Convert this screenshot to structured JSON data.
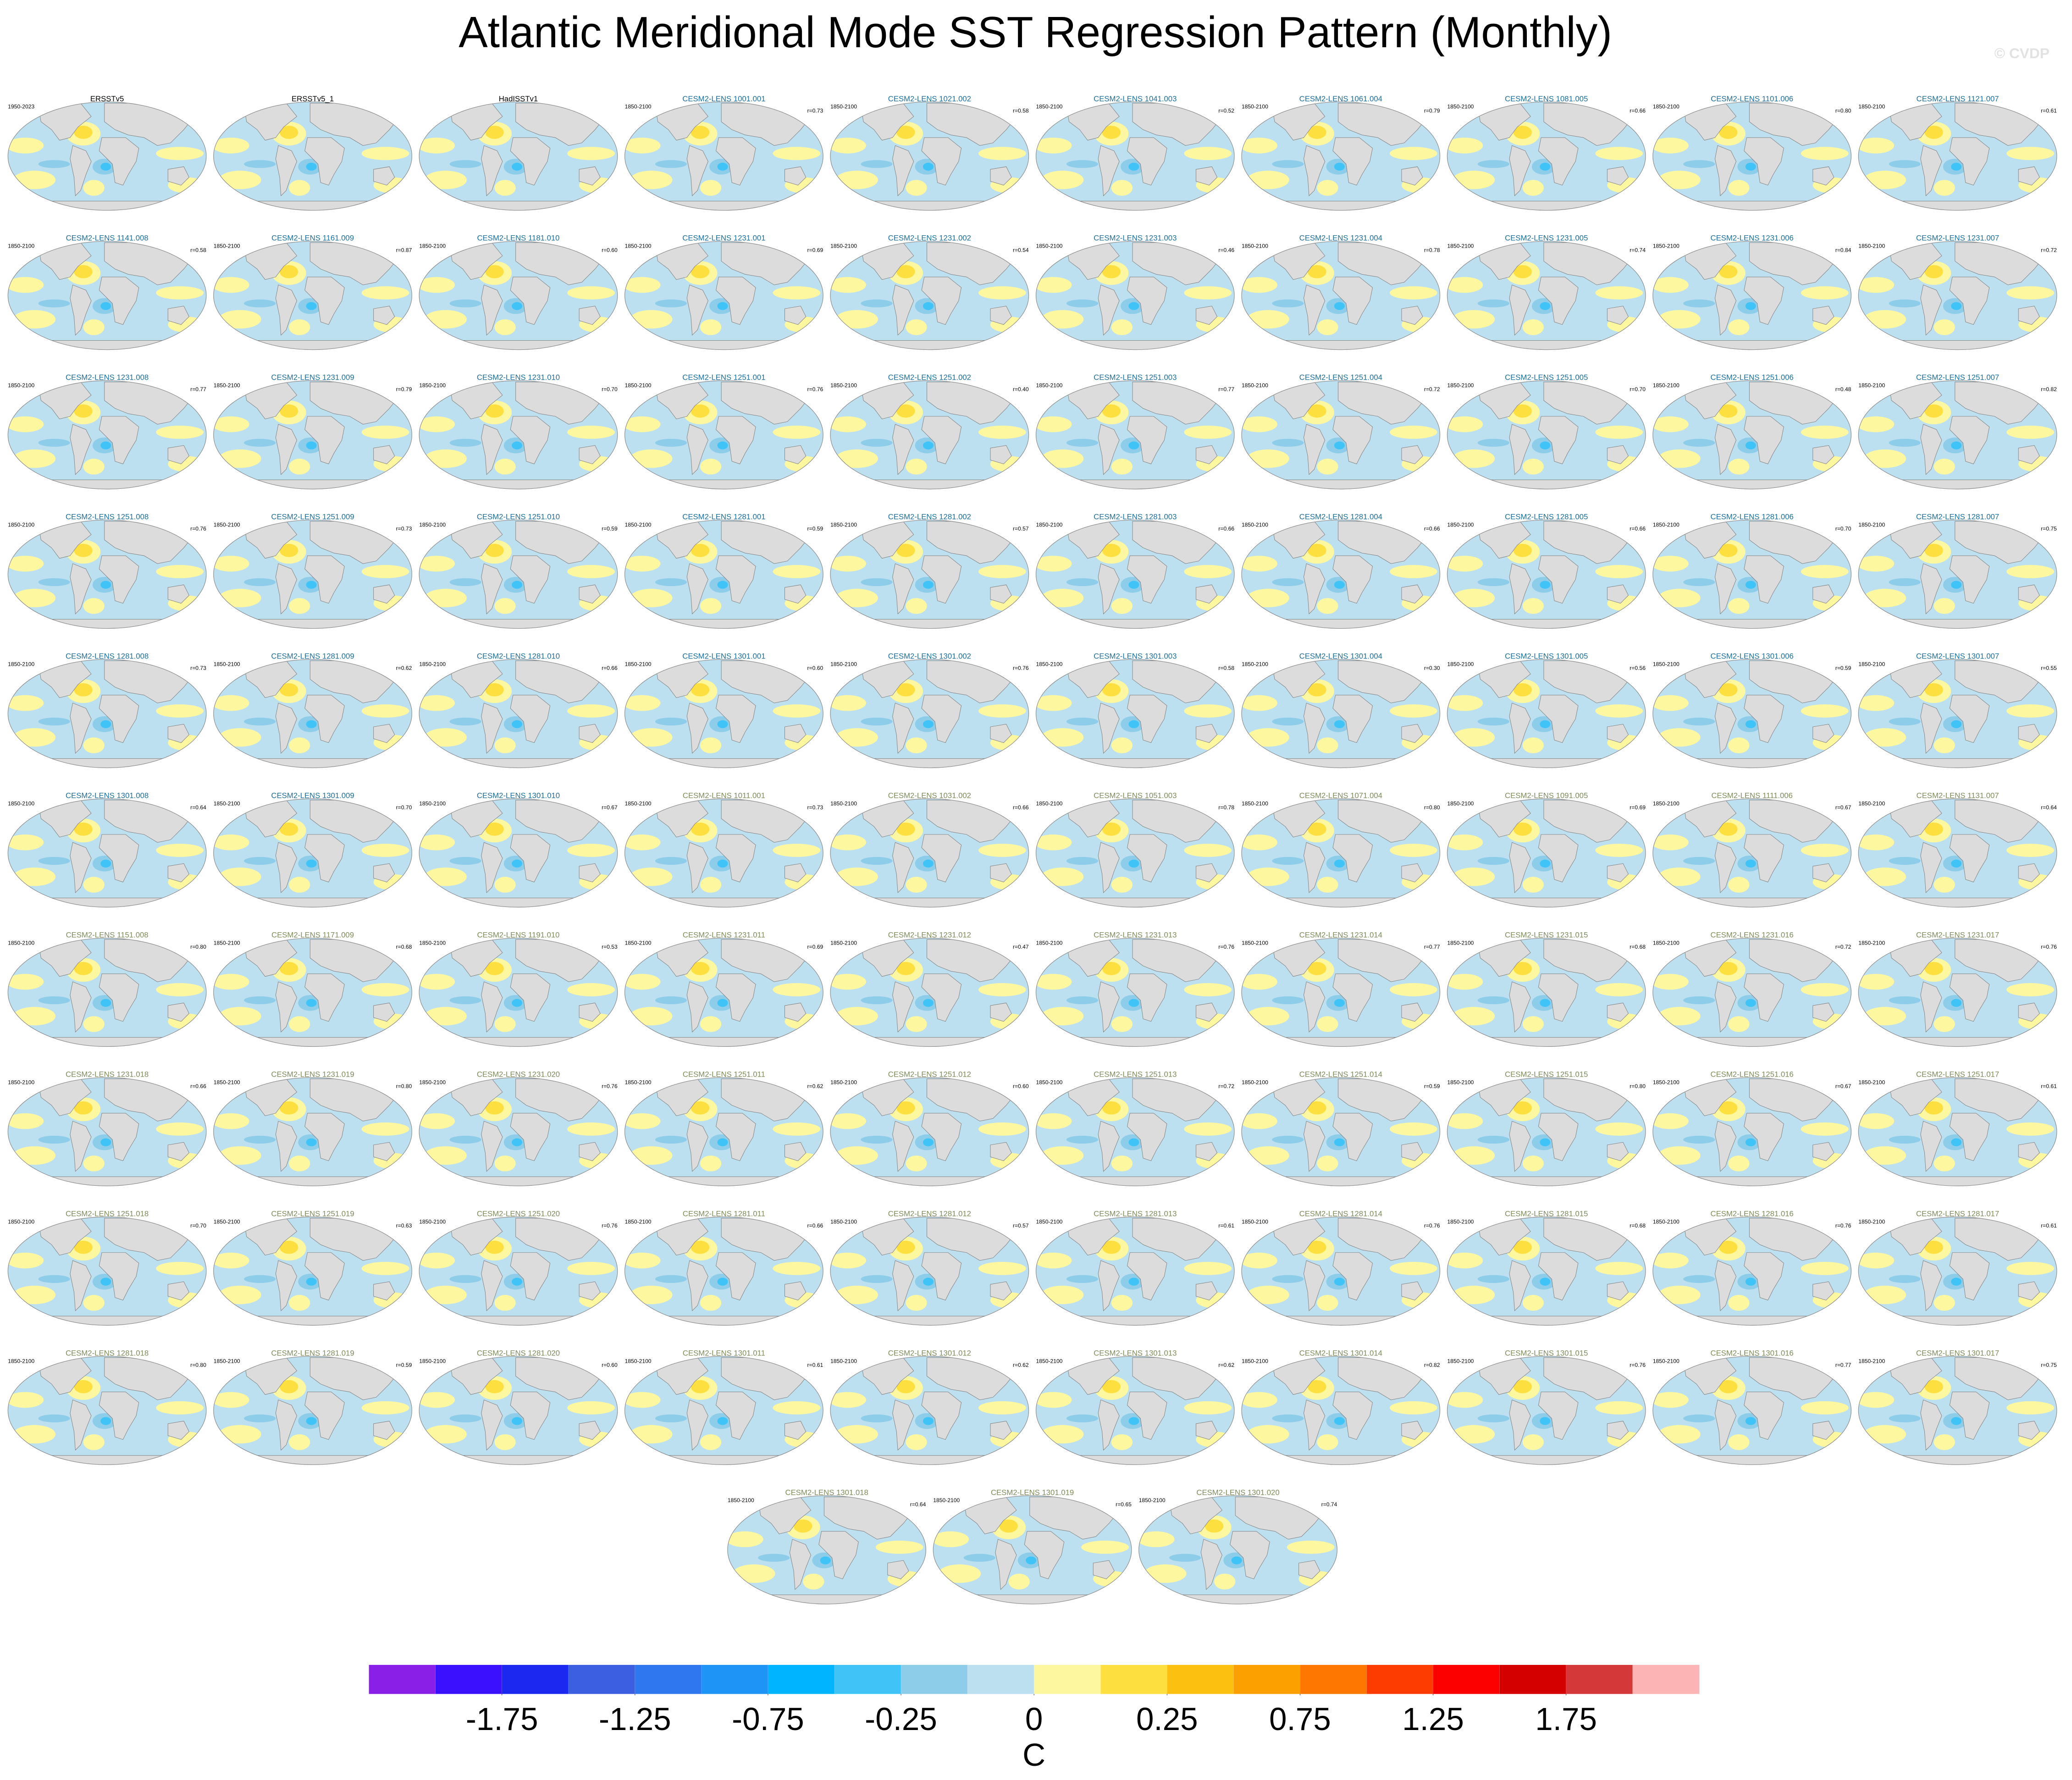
{
  "title": "Atlantic Meridional Mode SST Regression Pattern (Monthly)",
  "watermark": "© CVDP",
  "panels": [
    {
      "title": "ERSSTv5",
      "period": "1950-2023",
      "color": "#000000"
    },
    {
      "title": "ERSSTv5_1",
      "color": "#000000"
    },
    {
      "title": "HadISSTv1",
      "color": "#000000"
    },
    {
      "title": "CESM2-LENS 1001.001",
      "period": "1850-2100",
      "r": "r=0.73",
      "color": "#1b6f9e"
    },
    {
      "title": "CESM2-LENS 1021.002",
      "period": "1850-2100",
      "r": "r=0.58",
      "color": "#1b6f9e"
    },
    {
      "title": "CESM2-LENS 1041.003",
      "period": "1850-2100",
      "r": "r=0.52",
      "color": "#1b6f9e"
    },
    {
      "title": "CESM2-LENS 1061.004",
      "period": "1850-2100",
      "r": "r=0.79",
      "color": "#1b6f9e"
    },
    {
      "title": "CESM2-LENS 1081.005",
      "period": "1850-2100",
      "r": "r=0.66",
      "color": "#1b6f9e"
    },
    {
      "title": "CESM2-LENS 1101.006",
      "period": "1850-2100",
      "r": "r=0.80",
      "color": "#1b6f9e"
    },
    {
      "title": "CESM2-LENS 1121.007",
      "period": "1850-2100",
      "r": "r=0.61",
      "color": "#1b6f9e"
    },
    {
      "title": "CESM2-LENS 1141.008",
      "period": "1850-2100",
      "r": "r=0.58",
      "color": "#1b6f9e"
    },
    {
      "title": "CESM2-LENS 1161.009",
      "period": "1850-2100",
      "r": "r=0.87",
      "color": "#1b6f9e"
    },
    {
      "title": "CESM2-LENS 1181.010",
      "period": "1850-2100",
      "r": "r=0.60",
      "color": "#1b6f9e"
    },
    {
      "title": "CESM2-LENS 1231.001",
      "period": "1850-2100",
      "r": "r=0.69",
      "color": "#1b6f9e"
    },
    {
      "title": "CESM2-LENS 1231.002",
      "period": "1850-2100",
      "r": "r=0.54",
      "color": "#1b6f9e"
    },
    {
      "title": "CESM2-LENS 1231.003",
      "period": "1850-2100",
      "r": "r=0.46",
      "color": "#1b6f9e"
    },
    {
      "title": "CESM2-LENS 1231.004",
      "period": "1850-2100",
      "r": "r=0.78",
      "color": "#1b6f9e"
    },
    {
      "title": "CESM2-LENS 1231.005",
      "period": "1850-2100",
      "r": "r=0.74",
      "color": "#1b6f9e"
    },
    {
      "title": "CESM2-LENS 1231.006",
      "period": "1850-2100",
      "r": "r=0.84",
      "color": "#1b6f9e"
    },
    {
      "title": "CESM2-LENS 1231.007",
      "period": "1850-2100",
      "r": "r=0.72",
      "color": "#1b6f9e"
    },
    {
      "title": "CESM2-LENS 1231.008",
      "period": "1850-2100",
      "r": "r=0.77",
      "color": "#1b6f9e"
    },
    {
      "title": "CESM2-LENS 1231.009",
      "period": "1850-2100",
      "r": "r=0.79",
      "color": "#1b6f9e"
    },
    {
      "title": "CESM2-LENS 1231.010",
      "period": "1850-2100",
      "r": "r=0.70",
      "color": "#1b6f9e"
    },
    {
      "title": "CESM2-LENS 1251.001",
      "period": "1850-2100",
      "r": "r=0.76",
      "color": "#1b6f9e"
    },
    {
      "title": "CESM2-LENS 1251.002",
      "period": "1850-2100",
      "r": "r=0.40",
      "color": "#1b6f9e"
    },
    {
      "title": "CESM2-LENS 1251.003",
      "period": "1850-2100",
      "r": "r=0.77",
      "color": "#1b6f9e"
    },
    {
      "title": "CESM2-LENS 1251.004",
      "period": "1850-2100",
      "r": "r=0.72",
      "color": "#1b6f9e"
    },
    {
      "title": "CESM2-LENS 1251.005",
      "period": "1850-2100",
      "r": "r=0.70",
      "color": "#1b6f9e"
    },
    {
      "title": "CESM2-LENS 1251.006",
      "period": "1850-2100",
      "r": "r=0.48",
      "color": "#1b6f9e"
    },
    {
      "title": "CESM2-LENS 1251.007",
      "period": "1850-2100",
      "r": "r=0.82",
      "color": "#1b6f9e"
    },
    {
      "title": "CESM2-LENS 1251.008",
      "period": "1850-2100",
      "r": "r=0.76",
      "color": "#1b6f9e"
    },
    {
      "title": "CESM2-LENS 1251.009",
      "period": "1850-2100",
      "r": "r=0.73",
      "color": "#1b6f9e"
    },
    {
      "title": "CESM2-LENS 1251.010",
      "period": "1850-2100",
      "r": "r=0.59",
      "color": "#1b6f9e"
    },
    {
      "title": "CESM2-LENS 1281.001",
      "period": "1850-2100",
      "r": "r=0.59",
      "color": "#1b6f9e"
    },
    {
      "title": "CESM2-LENS 1281.002",
      "period": "1850-2100",
      "r": "r=0.57",
      "color": "#1b6f9e"
    },
    {
      "title": "CESM2-LENS 1281.003",
      "period": "1850-2100",
      "r": "r=0.66",
      "color": "#1b6f9e"
    },
    {
      "title": "CESM2-LENS 1281.004",
      "period": "1850-2100",
      "r": "r=0.66",
      "color": "#1b6f9e"
    },
    {
      "title": "CESM2-LENS 1281.005",
      "period": "1850-2100",
      "r": "r=0.66",
      "color": "#1b6f9e"
    },
    {
      "title": "CESM2-LENS 1281.006",
      "period": "1850-2100",
      "r": "r=0.70",
      "color": "#1b6f9e"
    },
    {
      "title": "CESM2-LENS 1281.007",
      "period": "1850-2100",
      "r": "r=0.75",
      "color": "#1b6f9e"
    },
    {
      "title": "CESM2-LENS 1281.008",
      "period": "1850-2100",
      "r": "r=0.73",
      "color": "#1b6f9e"
    },
    {
      "title": "CESM2-LENS 1281.009",
      "period": "1850-2100",
      "r": "r=0.62",
      "color": "#1b6f9e"
    },
    {
      "title": "CESM2-LENS 1281.010",
      "period": "1850-2100",
      "r": "r=0.66",
      "color": "#1b6f9e"
    },
    {
      "title": "CESM2-LENS 1301.001",
      "period": "1850-2100",
      "r": "r=0.60",
      "color": "#1b6f9e"
    },
    {
      "title": "CESM2-LENS 1301.002",
      "period": "1850-2100",
      "r": "r=0.76",
      "color": "#1b6f9e"
    },
    {
      "title": "CESM2-LENS 1301.003",
      "period": "1850-2100",
      "r": "r=0.58",
      "color": "#1b6f9e"
    },
    {
      "title": "CESM2-LENS 1301.004",
      "period": "1850-2100",
      "r": "r=0.30",
      "color": "#1b6f9e"
    },
    {
      "title": "CESM2-LENS 1301.005",
      "period": "1850-2100",
      "r": "r=0.56",
      "color": "#1b6f9e"
    },
    {
      "title": "CESM2-LENS 1301.006",
      "period": "1850-2100",
      "r": "r=0.59",
      "color": "#1b6f9e"
    },
    {
      "title": "CESM2-LENS 1301.007",
      "period": "1850-2100",
      "r": "r=0.55",
      "color": "#1b6f9e"
    },
    {
      "title": "CESM2-LENS 1301.008",
      "period": "1850-2100",
      "r": "r=0.64",
      "color": "#1b6f9e"
    },
    {
      "title": "CESM2-LENS 1301.009",
      "period": "1850-2100",
      "r": "r=0.70",
      "color": "#1b6f9e"
    },
    {
      "title": "CESM2-LENS 1301.010",
      "period": "1850-2100",
      "r": "r=0.67",
      "color": "#1b6f9e"
    },
    {
      "title": "CESM2-LENS 1011.001",
      "period": "1850-2100",
      "r": "r=0.73",
      "color": "#7d8c5a"
    },
    {
      "title": "CESM2-LENS 1031.002",
      "period": "1850-2100",
      "r": "r=0.66",
      "color": "#7d8c5a"
    },
    {
      "title": "CESM2-LENS 1051.003",
      "period": "1850-2100",
      "r": "r=0.78",
      "color": "#7d8c5a"
    },
    {
      "title": "CESM2-LENS 1071.004",
      "period": "1850-2100",
      "r": "r=0.80",
      "color": "#7d8c5a"
    },
    {
      "title": "CESM2-LENS 1091.005",
      "period": "1850-2100",
      "r": "r=0.69",
      "color": "#7d8c5a"
    },
    {
      "title": "CESM2-LENS 1111.006",
      "period": "1850-2100",
      "r": "r=0.67",
      "color": "#7d8c5a"
    },
    {
      "title": "CESM2-LENS 1131.007",
      "period": "1850-2100",
      "r": "r=0.64",
      "color": "#7d8c5a"
    },
    {
      "title": "CESM2-LENS 1151.008",
      "period": "1850-2100",
      "r": "r=0.80",
      "color": "#7d8c5a"
    },
    {
      "title": "CESM2-LENS 1171.009",
      "period": "1850-2100",
      "r": "r=0.68",
      "color": "#7d8c5a"
    },
    {
      "title": "CESM2-LENS 1191.010",
      "period": "1850-2100",
      "r": "r=0.53",
      "color": "#7d8c5a"
    },
    {
      "title": "CESM2-LENS 1231.011",
      "period": "1850-2100",
      "r": "r=0.69",
      "color": "#7d8c5a"
    },
    {
      "title": "CESM2-LENS 1231.012",
      "period": "1850-2100",
      "r": "r=0.47",
      "color": "#7d8c5a"
    },
    {
      "title": "CESM2-LENS 1231.013",
      "period": "1850-2100",
      "r": "r=0.76",
      "color": "#7d8c5a"
    },
    {
      "title": "CESM2-LENS 1231.014",
      "period": "1850-2100",
      "r": "r=0.77",
      "color": "#7d8c5a"
    },
    {
      "title": "CESM2-LENS 1231.015",
      "period": "1850-2100",
      "r": "r=0.68",
      "color": "#7d8c5a"
    },
    {
      "title": "CESM2-LENS 1231.016",
      "period": "1850-2100",
      "r": "r=0.72",
      "color": "#7d8c5a"
    },
    {
      "title": "CESM2-LENS 1231.017",
      "period": "1850-2100",
      "r": "r=0.76",
      "color": "#7d8c5a"
    },
    {
      "title": "CESM2-LENS 1231.018",
      "period": "1850-2100",
      "r": "r=0.66",
      "color": "#7d8c5a"
    },
    {
      "title": "CESM2-LENS 1231.019",
      "period": "1850-2100",
      "r": "r=0.80",
      "color": "#7d8c5a"
    },
    {
      "title": "CESM2-LENS 1231.020",
      "period": "1850-2100",
      "r": "r=0.76",
      "color": "#7d8c5a"
    },
    {
      "title": "CESM2-LENS 1251.011",
      "period": "1850-2100",
      "r": "r=0.62",
      "color": "#7d8c5a"
    },
    {
      "title": "CESM2-LENS 1251.012",
      "period": "1850-2100",
      "r": "r=0.60",
      "color": "#7d8c5a"
    },
    {
      "title": "CESM2-LENS 1251.013",
      "period": "1850-2100",
      "r": "r=0.72",
      "color": "#7d8c5a"
    },
    {
      "title": "CESM2-LENS 1251.014",
      "period": "1850-2100",
      "r": "r=0.59",
      "color": "#7d8c5a"
    },
    {
      "title": "CESM2-LENS 1251.015",
      "period": "1850-2100",
      "r": "r=0.80",
      "color": "#7d8c5a"
    },
    {
      "title": "CESM2-LENS 1251.016",
      "period": "1850-2100",
      "r": "r=0.67",
      "color": "#7d8c5a"
    },
    {
      "title": "CESM2-LENS 1251.017",
      "period": "1850-2100",
      "r": "r=0.61",
      "color": "#7d8c5a"
    },
    {
      "title": "CESM2-LENS 1251.018",
      "period": "1850-2100",
      "r": "r=0.70",
      "color": "#7d8c5a"
    },
    {
      "title": "CESM2-LENS 1251.019",
      "period": "1850-2100",
      "r": "r=0.63",
      "color": "#7d8c5a"
    },
    {
      "title": "CESM2-LENS 1251.020",
      "period": "1850-2100",
      "r": "r=0.76",
      "color": "#7d8c5a"
    },
    {
      "title": "CESM2-LENS 1281.011",
      "period": "1850-2100",
      "r": "r=0.66",
      "color": "#7d8c5a"
    },
    {
      "title": "CESM2-LENS 1281.012",
      "period": "1850-2100",
      "r": "r=0.57",
      "color": "#7d8c5a"
    },
    {
      "title": "CESM2-LENS 1281.013",
      "period": "1850-2100",
      "r": "r=0.61",
      "color": "#7d8c5a"
    },
    {
      "title": "CESM2-LENS 1281.014",
      "period": "1850-2100",
      "r": "r=0.76",
      "color": "#7d8c5a"
    },
    {
      "title": "CESM2-LENS 1281.015",
      "period": "1850-2100",
      "r": "r=0.68",
      "color": "#7d8c5a"
    },
    {
      "title": "CESM2-LENS 1281.016",
      "period": "1850-2100",
      "r": "r=0.76",
      "color": "#7d8c5a"
    },
    {
      "title": "CESM2-LENS 1281.017",
      "period": "1850-2100",
      "r": "r=0.61",
      "color": "#7d8c5a"
    },
    {
      "title": "CESM2-LENS 1281.018",
      "period": "1850-2100",
      "r": "r=0.80",
      "color": "#7d8c5a"
    },
    {
      "title": "CESM2-LENS 1281.019",
      "period": "1850-2100",
      "r": "r=0.59",
      "color": "#7d8c5a"
    },
    {
      "title": "CESM2-LENS 1281.020",
      "period": "1850-2100",
      "r": "r=0.60",
      "color": "#7d8c5a"
    },
    {
      "title": "CESM2-LENS 1301.011",
      "period": "1850-2100",
      "r": "r=0.61",
      "color": "#7d8c5a"
    },
    {
      "title": "CESM2-LENS 1301.012",
      "period": "1850-2100",
      "r": "r=0.62",
      "color": "#7d8c5a"
    },
    {
      "title": "CESM2-LENS 1301.013",
      "period": "1850-2100",
      "r": "r=0.62",
      "color": "#7d8c5a"
    },
    {
      "title": "CESM2-LENS 1301.014",
      "period": "1850-2100",
      "r": "r=0.82",
      "color": "#7d8c5a"
    },
    {
      "title": "CESM2-LENS 1301.015",
      "period": "1850-2100",
      "r": "r=0.76",
      "color": "#7d8c5a"
    },
    {
      "title": "CESM2-LENS 1301.016",
      "period": "1850-2100",
      "r": "r=0.77",
      "color": "#7d8c5a"
    },
    {
      "title": "CESM2-LENS 1301.017",
      "period": "1850-2100",
      "r": "r=0.75",
      "color": "#7d8c5a"
    },
    {
      "title": "CESM2-LENS 1301.018",
      "period": "1850-2100",
      "r": "r=0.64",
      "color": "#7d8c5a"
    },
    {
      "title": "CESM2-LENS 1301.019",
      "period": "1850-2100",
      "r": "r=0.65",
      "color": "#7d8c5a"
    },
    {
      "title": "CESM2-LENS 1301.020",
      "period": "1850-2100",
      "r": "r=0.74",
      "color": "#7d8c5a"
    }
  ],
  "colorbar": {
    "colors": [
      "#8a20e8",
      "#3a10ff",
      "#1a28f0",
      "#3b5fe0",
      "#2f77ef",
      "#1f94f7",
      "#00b4ff",
      "#40c4f8",
      "#8ecdea",
      "#bde0f0",
      "#fdf8a0",
      "#fde040",
      "#fcc010",
      "#fca000",
      "#fc7800",
      "#fc3c00",
      "#fc0000",
      "#d40000",
      "#d43838",
      "#fcb4b4"
    ],
    "levels": [
      -2,
      -1.75,
      -1.5,
      -1.25,
      -1,
      -0.75,
      -0.5,
      -0.25,
      -0.1,
      0,
      0.1,
      0.25,
      0.5,
      0.75,
      1,
      1.25,
      1.5,
      1.75,
      2
    ],
    "ticks": [
      -1.75,
      -1.25,
      -0.75,
      -0.25,
      0,
      0.25,
      0.75,
      1.25,
      1.75
    ],
    "unit": "C"
  }
}
